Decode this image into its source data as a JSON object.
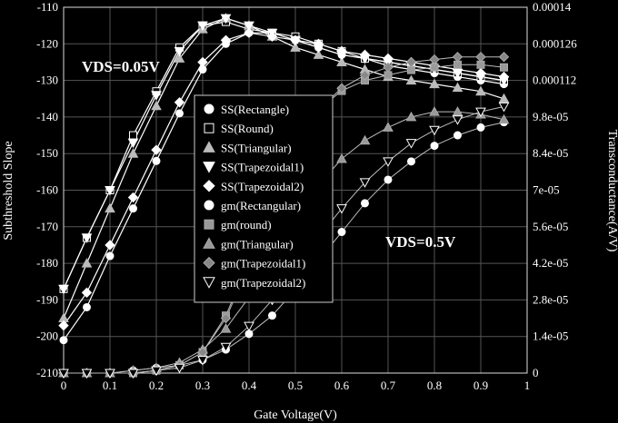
{
  "chart_data": {
    "type": "line",
    "xlabel": "Gate Voltage(V)",
    "ylabel_left": "Subthreshold Slope",
    "ylabel_right": "Transconductance(A/V)",
    "xlim": [
      0,
      1
    ],
    "ylim_left": [
      -210,
      -110
    ],
    "ylim_right": [
      0,
      0.00014
    ],
    "grid": true,
    "legend_position": "center-left",
    "x_ticks": [
      "0",
      "0.1",
      "0.2",
      "0.3",
      "0.4",
      "0.5",
      "0.6",
      "0.7",
      "0.8",
      "0.9",
      "1"
    ],
    "y_left_ticks": [
      "-110",
      "-120",
      "-130",
      "-140",
      "-150",
      "-160",
      "-170",
      "-180",
      "-190",
      "-200",
      "-210"
    ],
    "y_right_ticks": [
      "0.00014",
      "0.000126",
      "0.000112",
      "9.8e-05",
      "8.4e-05",
      "7e-05",
      "5.6e-05",
      "4.2e-05",
      "2.8e-05",
      "1.4e-05",
      "0"
    ],
    "annotations": [
      {
        "text": "VDS=0.05V",
        "x": 0.0,
        "y": -125
      },
      {
        "text": "VDS=0.5V",
        "x": 0.71,
        "y": -173
      }
    ],
    "x": [
      0,
      0.05,
      0.1,
      0.15,
      0.2,
      0.25,
      0.3,
      0.35,
      0.4,
      0.45,
      0.5,
      0.55,
      0.6,
      0.65,
      0.7,
      0.75,
      0.8,
      0.85,
      0.9,
      0.95
    ],
    "series": [
      {
        "name": "SS(Rectangle)",
        "axis": "left",
        "marker": "circle",
        "values": [
          -201,
          -192,
          -178,
          -165,
          -152,
          -139,
          -127,
          -120,
          -117,
          -117,
          -119,
          -121,
          -123,
          -124,
          -126,
          -127,
          -128,
          -129,
          -130,
          -131
        ]
      },
      {
        "name": "SS(Round)",
        "axis": "left",
        "marker": "square",
        "values": [
          -187,
          -173,
          -160,
          -145,
          -133,
          -121,
          -115,
          -114,
          -116,
          -117,
          -118,
          -120,
          -122,
          -124,
          -125,
          -126,
          -127,
          -128,
          -129,
          -130
        ]
      },
      {
        "name": "SS(Triangular)",
        "axis": "left",
        "marker": "triangle-up",
        "values": [
          -195,
          -180,
          -165,
          -150,
          -137,
          -124,
          -116,
          -113,
          -115,
          -118,
          -121,
          -123,
          -125,
          -127,
          -129,
          -130,
          -131,
          -132,
          -133,
          -135
        ]
      },
      {
        "name": "SS(Trapezoidal1)",
        "axis": "left",
        "marker": "triangle-down",
        "values": [
          -187,
          -173,
          -160,
          -147,
          -134,
          -122,
          -115,
          -113,
          -115,
          -117,
          -119,
          -121,
          -123,
          -124,
          -125,
          -126,
          -127,
          -128,
          -129,
          -130
        ]
      },
      {
        "name": "SS(Trapezoidal2)",
        "axis": "left",
        "marker": "diamond",
        "values": [
          -197,
          -188,
          -175,
          -162,
          -149,
          -136,
          -125,
          -119,
          -117,
          -118,
          -119,
          -120,
          -122,
          -123,
          -124,
          -125,
          -126,
          -127,
          -128,
          -129
        ]
      },
      {
        "name": "gm(Rectangular)",
        "axis": "right",
        "marker": "circle",
        "values": [
          0,
          0,
          0,
          1e-06,
          2e-06,
          3e-06,
          5e-06,
          9e-06,
          1.5e-05,
          2.2e-05,
          3.2e-05,
          4.3e-05,
          5.4e-05,
          6.5e-05,
          7.4e-05,
          8.1e-05,
          8.7e-05,
          9.1e-05,
          9.4e-05,
          9.6e-05
        ]
      },
      {
        "name": "gm(round)",
        "axis": "right",
        "marker": "square",
        "values": [
          0,
          0,
          0,
          0,
          1e-06,
          3e-06,
          8e-06,
          2.2e-05,
          4.3e-05,
          6.8e-05,
          8.8e-05,
          0.000101,
          0.000108,
          0.000112,
          0.000114,
          0.000116,
          0.000117,
          0.000118,
          0.000118,
          0.000117
        ]
      },
      {
        "name": "gm(Triangular)",
        "axis": "right",
        "marker": "triangle-up",
        "values": [
          0,
          0,
          0,
          1e-06,
          2e-06,
          4e-06,
          9e-06,
          1.7e-05,
          2.9e-05,
          4.4e-05,
          5.9e-05,
          7.2e-05,
          8.2e-05,
          8.9e-05,
          9.4e-05,
          9.8e-05,
          0.0001,
          0.0001,
          9.9e-05,
          9.7e-05
        ]
      },
      {
        "name": "gm(Trapezoidal1)",
        "axis": "right",
        "marker": "diamond",
        "values": [
          0,
          0,
          0,
          0,
          1e-06,
          3e-06,
          8e-06,
          2.1e-05,
          4.1e-05,
          6.6e-05,
          8.7e-05,
          0.000101,
          0.000109,
          0.000114,
          0.000117,
          0.000119,
          0.00012,
          0.000121,
          0.000121,
          0.000121
        ]
      },
      {
        "name": "gm(Trapezoidal2)",
        "axis": "right",
        "marker": "triangle-down",
        "values": [
          0,
          0,
          0,
          0,
          1e-06,
          2e-06,
          5e-06,
          1e-05,
          1.8e-05,
          2.8e-05,
          4e-05,
          5.2e-05,
          6.3e-05,
          7.3e-05,
          8.1e-05,
          8.8e-05,
          9.3e-05,
          9.7e-05,
          0.0001,
          0.000102
        ]
      }
    ]
  }
}
